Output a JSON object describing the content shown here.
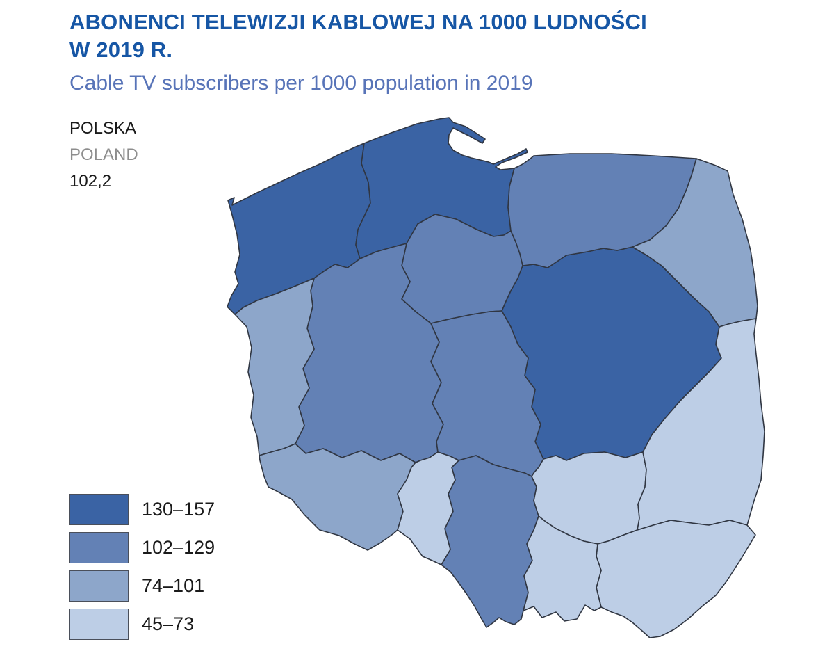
{
  "header": {
    "title_line1": "ABONENCI TELEWIZJI KABLOWEJ NA 1000 LUDNOŚCI",
    "title_line2": "W 2019 R.",
    "subtitle": "Cable TV subscribers per 1000 population in 2019"
  },
  "country_label": {
    "name_pl": "POLSKA",
    "name_en": "POLAND",
    "value": "102,2"
  },
  "legend": [
    {
      "label": "130–157",
      "color": "#3a63a4"
    },
    {
      "label": "102–129",
      "color": "#6381b5"
    },
    {
      "label": "74–101",
      "color": "#8da6ca"
    },
    {
      "label": "45–73",
      "color": "#bdcee6"
    }
  ],
  "chart_data": {
    "type": "choropleth_map",
    "title": "ABONENCI TELEWIZJI KABLOWEJ NA 1000 LUDNOŚCI W 2019 R.",
    "subtitle_en": "Cable TV subscribers per 1000 population in 2019",
    "unit": "subscribers per 1000 population",
    "geography": "Poland, voivodeships (NUTS-2)",
    "country_value": 102.2,
    "legend_position": "bottom-left",
    "classes": [
      {
        "range": "130–157",
        "min": 130,
        "max": 157,
        "color": "#3a63a4"
      },
      {
        "range": "102–129",
        "min": 102,
        "max": 129,
        "color": "#6381b5"
      },
      {
        "range": "74–101",
        "min": 74,
        "max": 101,
        "color": "#8da6ca"
      },
      {
        "range": "45–73",
        "min": 45,
        "max": 73,
        "color": "#bdcee6"
      }
    ],
    "regions": [
      {
        "name": "zachodniopomorskie",
        "range": "130–157"
      },
      {
        "name": "pomorskie",
        "range": "130–157"
      },
      {
        "name": "mazowieckie",
        "range": "130–157"
      },
      {
        "name": "warminsko-mazurskie",
        "range": "102–129"
      },
      {
        "name": "kujawsko-pomorskie",
        "range": "102–129"
      },
      {
        "name": "wielkopolskie",
        "range": "102–129"
      },
      {
        "name": "lodzkie",
        "range": "102–129"
      },
      {
        "name": "slaskie",
        "range": "102–129"
      },
      {
        "name": "podlaskie",
        "range": "74–101"
      },
      {
        "name": "lubuskie",
        "range": "74–101"
      },
      {
        "name": "dolnoslaskie",
        "range": "74–101"
      },
      {
        "name": "opolskie",
        "range": "45–73"
      },
      {
        "name": "swietokrzyskie",
        "range": "45–73"
      },
      {
        "name": "lubelskie",
        "range": "45–73"
      },
      {
        "name": "podkarpackie",
        "range": "45–73"
      },
      {
        "name": "malopolskie",
        "range": "45–73"
      }
    ]
  }
}
